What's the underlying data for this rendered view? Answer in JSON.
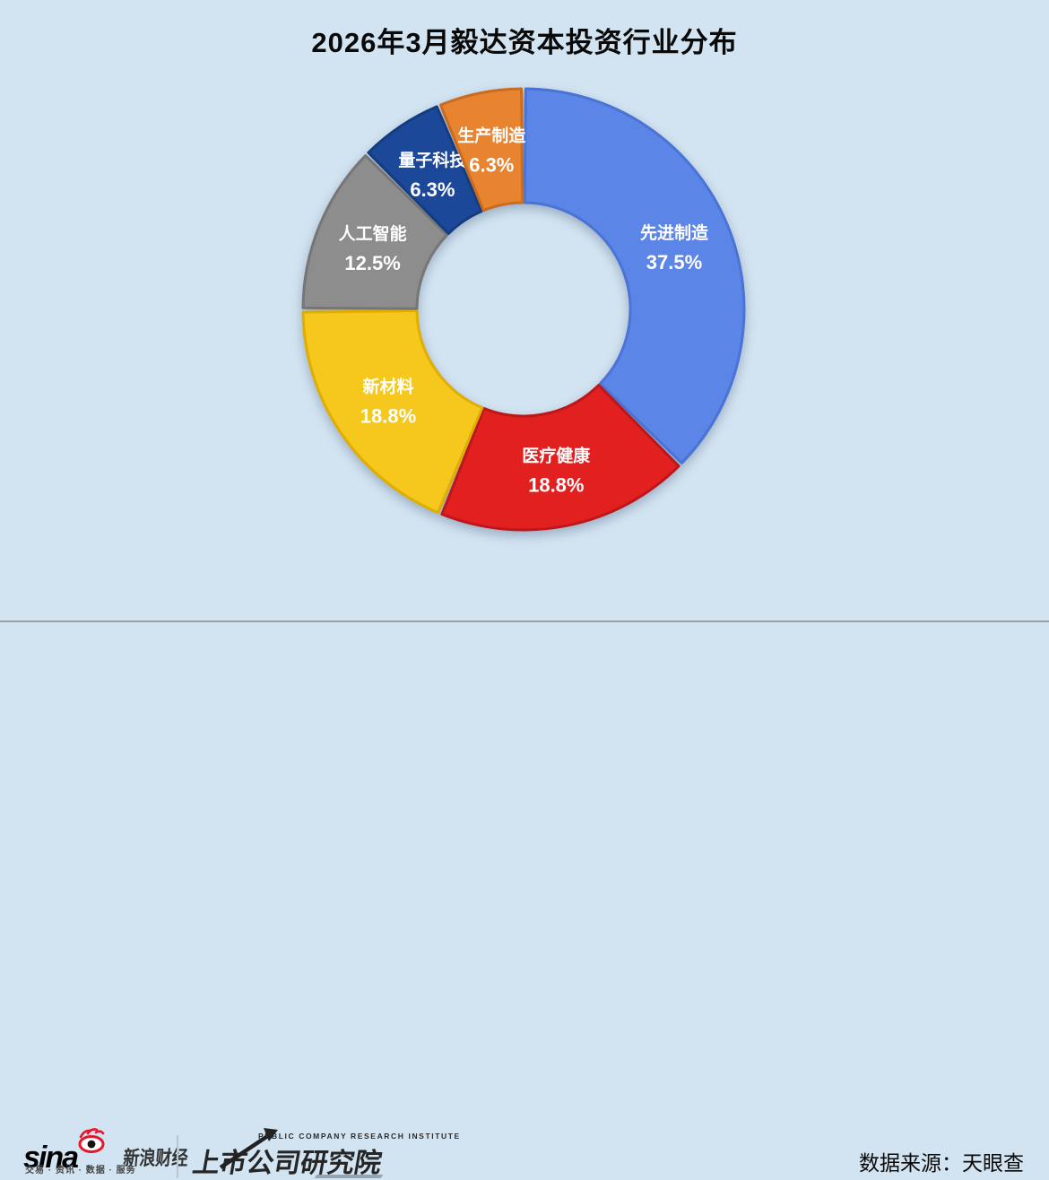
{
  "page": {
    "background": "#D2E4F1"
  },
  "title": "2026年3月毅达资本投资行业分布",
  "chart_data": {
    "type": "pie",
    "subtype": "donut",
    "title": "2026年3月毅达资本投资行业分布",
    "start_angle_deg": 0,
    "direction": "clockwise",
    "legend": "none",
    "label_color": "#FFFFFF",
    "segments": [
      {
        "label": "先进制造",
        "value_pct": 37.5,
        "display": "37.5%",
        "color": "#5C85E8",
        "border_color": "#4A73D6"
      },
      {
        "label": "医疗健康",
        "value_pct": 18.8,
        "display": "18.8%",
        "color": "#E2201F",
        "border_color": "#BE1619"
      },
      {
        "label": "新材料",
        "value_pct": 18.8,
        "display": "18.8%",
        "color": "#F6C71C",
        "border_color": "#DFAE00"
      },
      {
        "label": "人工智能",
        "value_pct": 12.5,
        "display": "12.5%",
        "color": "#8D8D8D",
        "border_color": "#767676"
      },
      {
        "label": "量子科技",
        "value_pct": 6.3,
        "display": "6.3%",
        "color": "#1C4899",
        "border_color": "#143C80"
      },
      {
        "label": "生产制造",
        "value_pct": 6.3,
        "display": "6.3%",
        "color": "#E8832F",
        "border_color": "#C96C1F"
      }
    ]
  },
  "footer": {
    "sina_brand": "sina",
    "sina_name": "新浪财经",
    "sina_tagline": "交易 · 资讯 · 数据 · 服务",
    "institute_en": "PUBLIC COMPANY RESEARCH INSTITUTE",
    "institute_name": "上市公司研究院",
    "source": "数据来源：天眼查"
  }
}
